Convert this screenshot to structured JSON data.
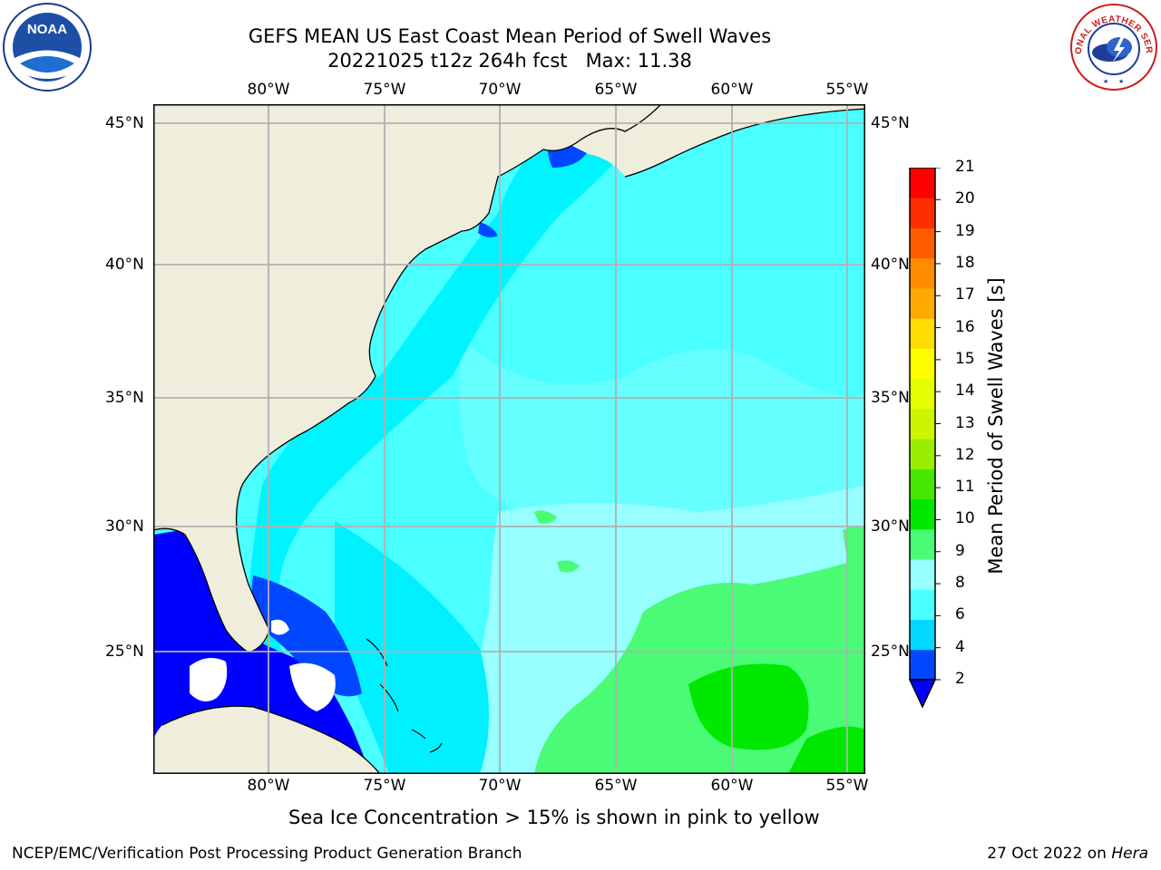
{
  "header": {
    "title_line1": "GEFS MEAN US East Coast Mean Period of Swell Waves",
    "title_line2": "20221025 t12z 264h fcst   Max: 11.38"
  },
  "map": {
    "lon_labels": [
      "80°W",
      "75°W",
      "70°W",
      "65°W",
      "60°W",
      "55°W"
    ],
    "lat_labels": [
      "45°N",
      "40°N",
      "35°N",
      "30°N",
      "25°N"
    ],
    "land_color": "#efeedd",
    "grid_color": "#b0b0b0"
  },
  "colorbar": {
    "title": "Mean Period of Swell Waves [s]",
    "ticks": [
      "2",
      "4",
      "6",
      "8",
      "9",
      "10",
      "11",
      "12",
      "13",
      "14",
      "15",
      "16",
      "17",
      "18",
      "19",
      "20",
      "21"
    ],
    "colors": [
      "#0047ff",
      "#00d8ff",
      "#4affff",
      "#97ffff",
      "#4afb76",
      "#00e800",
      "#44e800",
      "#99ee00",
      "#ccf500",
      "#e5ff00",
      "#ffff00",
      "#ffdd00",
      "#ffaa00",
      "#ff8c00",
      "#ff5c00",
      "#ff2e00",
      "#ff0000"
    ],
    "under_color": "#0000ff"
  },
  "notes": {
    "sea_ice": "Sea Ice Concentration > 15% is shown in pink to yellow",
    "footer_left": "NCEP/EMC/Verification Post Processing Product Generation Branch",
    "footer_date": "27 Oct 2022 on ",
    "footer_host": "Hera"
  },
  "logos": {
    "noaa_text": "NOAA",
    "nws_text": "NATIONAL WEATHER SERVICE"
  }
}
